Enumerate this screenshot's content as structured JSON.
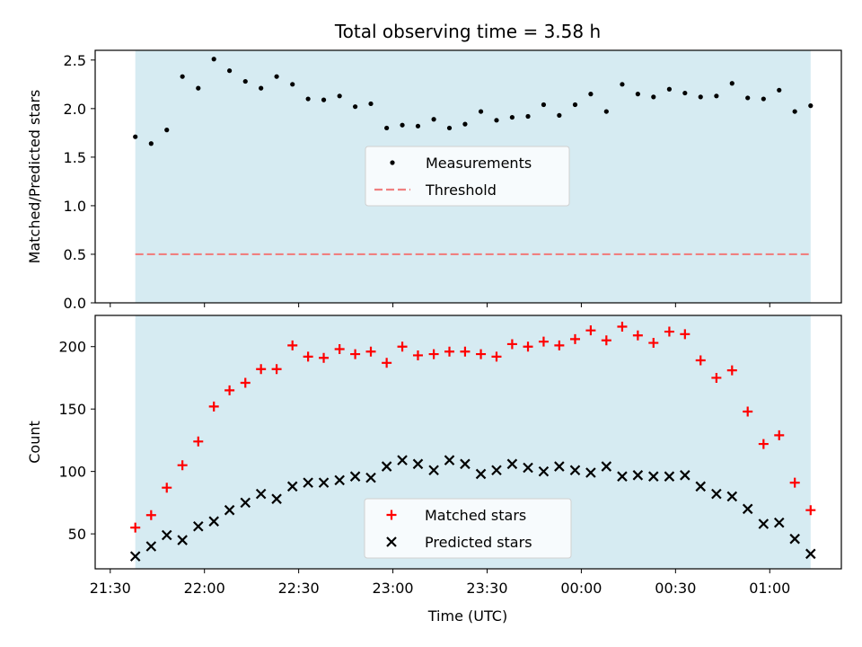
{
  "chart_data": {
    "type": "scatter",
    "title": "Total observing time = 3.58 h",
    "xlabel": "Time (UTC)",
    "x_tick_labels": [
      "21:30",
      "22:00",
      "22:30",
      "23:00",
      "23:30",
      "00:00",
      "00:30",
      "01:00"
    ],
    "x_tick_hours": [
      21.5,
      22.0,
      22.5,
      23.0,
      23.5,
      24.0,
      24.5,
      25.0
    ],
    "xlim": [
      21.42,
      25.38
    ],
    "observing_window": [
      21.633,
      25.217
    ],
    "span_color": "#add8e6",
    "panels": [
      {
        "ylabel": "Matched/Predicted stars",
        "ylim": [
          0,
          2.6
        ],
        "yticks": [
          0.0,
          0.5,
          1.0,
          1.5,
          2.0,
          2.5
        ],
        "ytick_labels": [
          "0.0",
          "0.5",
          "1.0",
          "1.5",
          "2.0",
          "2.5"
        ],
        "legend_position": "center",
        "series": [
          {
            "name": "Measurements",
            "kind": "dot",
            "color": "#000000",
            "x": [
              21.633,
              21.717,
              21.8,
              21.883,
              21.967,
              22.05,
              22.133,
              22.217,
              22.3,
              22.383,
              22.467,
              22.55,
              22.633,
              22.717,
              22.8,
              22.883,
              22.967,
              23.05,
              23.133,
              23.217,
              23.3,
              23.383,
              23.467,
              23.55,
              23.633,
              23.717,
              23.8,
              23.883,
              23.967,
              24.05,
              24.133,
              24.217,
              24.3,
              24.383,
              24.467,
              24.55,
              24.633,
              24.717,
              24.8,
              24.883,
              24.967,
              25.05,
              25.133,
              25.217
            ],
            "y": [
              1.71,
              1.64,
              1.78,
              2.33,
              2.21,
              2.51,
              2.39,
              2.28,
              2.21,
              2.33,
              2.25,
              2.1,
              2.09,
              2.13,
              2.02,
              2.05,
              1.8,
              1.83,
              1.82,
              1.89,
              1.8,
              1.84,
              1.97,
              1.88,
              1.91,
              1.92,
              2.04,
              1.93,
              2.04,
              2.15,
              1.97,
              2.25,
              2.15,
              2.12,
              2.2,
              2.16,
              2.12,
              2.13,
              2.26,
              2.11,
              2.1,
              2.19,
              1.97,
              2.03
            ]
          },
          {
            "name": "Threshold",
            "kind": "dashed-line",
            "color": "#f08080",
            "y": 0.5
          }
        ]
      },
      {
        "ylabel": "Count",
        "ylim": [
          22,
          225
        ],
        "yticks": [
          50,
          100,
          150,
          200
        ],
        "ytick_labels": [
          "50",
          "100",
          "150",
          "200"
        ],
        "legend_position": "bottom-center",
        "series": [
          {
            "name": "Matched stars",
            "kind": "plus",
            "color": "#ff0000",
            "x": [
              21.633,
              21.717,
              21.8,
              21.883,
              21.967,
              22.05,
              22.133,
              22.217,
              22.3,
              22.383,
              22.467,
              22.55,
              22.633,
              22.717,
              22.8,
              22.883,
              22.967,
              23.05,
              23.133,
              23.217,
              23.3,
              23.383,
              23.467,
              23.55,
              23.633,
              23.717,
              23.8,
              23.883,
              23.967,
              24.05,
              24.133,
              24.217,
              24.3,
              24.383,
              24.467,
              24.55,
              24.633,
              24.717,
              24.8,
              24.883,
              24.967,
              25.05,
              25.133,
              25.217
            ],
            "y": [
              55,
              65,
              87,
              105,
              124,
              152,
              165,
              171,
              182,
              182,
              201,
              192,
              191,
              198,
              194,
              196,
              187,
              200,
              193,
              194,
              196,
              196,
              194,
              192,
              202,
              200,
              204,
              201,
              206,
              213,
              205,
              216,
              209,
              203,
              212,
              210,
              189,
              175,
              181,
              148,
              122,
              129,
              91,
              69
            ]
          },
          {
            "name": "Predicted stars",
            "kind": "x",
            "color": "#000000",
            "x": [
              21.633,
              21.717,
              21.8,
              21.883,
              21.967,
              22.05,
              22.133,
              22.217,
              22.3,
              22.383,
              22.467,
              22.55,
              22.633,
              22.717,
              22.8,
              22.883,
              22.967,
              23.05,
              23.133,
              23.217,
              23.3,
              23.383,
              23.467,
              23.55,
              23.633,
              23.717,
              23.8,
              23.883,
              23.967,
              24.05,
              24.133,
              24.217,
              24.3,
              24.383,
              24.467,
              24.55,
              24.633,
              24.717,
              24.8,
              24.883,
              24.967,
              25.05,
              25.133,
              25.217
            ],
            "y": [
              32,
              40,
              49,
              45,
              56,
              60,
              69,
              75,
              82,
              78,
              88,
              91,
              91,
              93,
              96,
              95,
              104,
              109,
              106,
              101,
              109,
              106,
              98,
              101,
              106,
              103,
              100,
              104,
              101,
              99,
              104,
              96,
              97,
              96,
              96,
              97,
              88,
              82,
              80,
              70,
              58,
              59,
              46,
              34
            ]
          }
        ]
      }
    ]
  }
}
